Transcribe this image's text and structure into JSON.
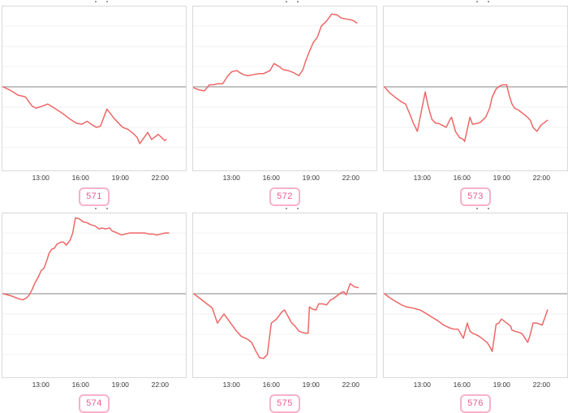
{
  "colors": {
    "line": "#ee6666",
    "zero_line": "#9e9e9e",
    "grid": "#f2f2f2",
    "panel_border": "#d9d9d9",
    "badge_border": "#f8b1ca",
    "badge_text": "#ea5c92",
    "tick_text": "#383838"
  },
  "chart_axis": {
    "t_min": 10.05,
    "t_max": 24.0,
    "ticks": [
      {
        "t": 13,
        "label": "13:00"
      },
      {
        "t": 16,
        "label": "16:00"
      },
      {
        "t": 19,
        "label": "19:00"
      },
      {
        "t": 22,
        "label": "22:00"
      }
    ],
    "grid_units": [
      3,
      2,
      1,
      0,
      -1,
      -2,
      -3
    ],
    "baseline": 0,
    "y_unit": "gridline units relative to baseline (y axis unlabeled)",
    "legend": "none",
    "grid": "horizontal only"
  },
  "chart_data": [
    {
      "badge_label": "571",
      "type": "line",
      "x_ticks": [
        "13:00",
        "16:00",
        "19:00",
        "22:00"
      ],
      "points": [
        [
          10.1,
          0
        ],
        [
          10.6,
          -0.15
        ],
        [
          11.2,
          -0.4
        ],
        [
          11.8,
          -0.5
        ],
        [
          12.3,
          -0.95
        ],
        [
          12.6,
          -1.05
        ],
        [
          13.1,
          -0.95
        ],
        [
          13.5,
          -0.85
        ],
        [
          14.0,
          -1.05
        ],
        [
          14.6,
          -1.3
        ],
        [
          15.2,
          -1.6
        ],
        [
          15.7,
          -1.8
        ],
        [
          16.1,
          -1.85
        ],
        [
          16.5,
          -1.7
        ],
        [
          16.8,
          -1.85
        ],
        [
          17.2,
          -2.0
        ],
        [
          17.5,
          -1.95
        ],
        [
          18.0,
          -1.1
        ],
        [
          18.6,
          -1.6
        ],
        [
          19.2,
          -2.0
        ],
        [
          19.6,
          -2.1
        ],
        [
          20.0,
          -2.3
        ],
        [
          20.3,
          -2.5
        ],
        [
          20.5,
          -2.8
        ],
        [
          21.1,
          -2.25
        ],
        [
          21.4,
          -2.6
        ],
        [
          21.9,
          -2.35
        ],
        [
          22.4,
          -2.65
        ],
        [
          22.5,
          -2.6
        ]
      ]
    },
    {
      "badge_label": "572",
      "type": "line",
      "x_ticks": [
        "13:00",
        "16:00",
        "19:00",
        "22:00"
      ],
      "points": [
        [
          10.1,
          -0.05
        ],
        [
          10.5,
          -0.15
        ],
        [
          10.9,
          -0.2
        ],
        [
          11.3,
          0.1
        ],
        [
          11.6,
          0.1
        ],
        [
          11.9,
          0.15
        ],
        [
          12.3,
          0.15
        ],
        [
          12.7,
          0.55
        ],
        [
          13.0,
          0.75
        ],
        [
          13.4,
          0.8
        ],
        [
          13.6,
          0.7
        ],
        [
          13.9,
          0.6
        ],
        [
          14.2,
          0.55
        ],
        [
          14.6,
          0.6
        ],
        [
          15.1,
          0.65
        ],
        [
          15.4,
          0.65
        ],
        [
          15.9,
          0.8
        ],
        [
          16.2,
          1.15
        ],
        [
          16.6,
          1.0
        ],
        [
          16.9,
          0.85
        ],
        [
          17.3,
          0.8
        ],
        [
          17.7,
          0.7
        ],
        [
          18.1,
          0.55
        ],
        [
          18.4,
          0.85
        ],
        [
          18.6,
          1.25
        ],
        [
          18.9,
          1.75
        ],
        [
          19.2,
          2.2
        ],
        [
          19.5,
          2.45
        ],
        [
          19.8,
          3.0
        ],
        [
          20.2,
          3.25
        ],
        [
          20.6,
          3.6
        ],
        [
          21.0,
          3.55
        ],
        [
          21.3,
          3.4
        ],
        [
          21.7,
          3.35
        ],
        [
          22.1,
          3.3
        ],
        [
          22.3,
          3.25
        ],
        [
          22.5,
          3.15
        ]
      ]
    },
    {
      "badge_label": "573",
      "type": "line",
      "x_ticks": [
        "13:00",
        "16:00",
        "19:00",
        "22:00"
      ],
      "points": [
        [
          10.1,
          0
        ],
        [
          10.5,
          -0.3
        ],
        [
          11.0,
          -0.55
        ],
        [
          11.4,
          -0.75
        ],
        [
          11.7,
          -0.85
        ],
        [
          12.0,
          -1.3
        ],
        [
          12.3,
          -1.8
        ],
        [
          12.6,
          -2.2
        ],
        [
          13.2,
          -0.25
        ],
        [
          13.4,
          -0.9
        ],
        [
          13.7,
          -1.6
        ],
        [
          14.0,
          -1.8
        ],
        [
          14.2,
          -1.8
        ],
        [
          14.5,
          -1.9
        ],
        [
          14.8,
          -2.0
        ],
        [
          15.1,
          -1.6
        ],
        [
          15.2,
          -1.5
        ],
        [
          15.5,
          -2.2
        ],
        [
          15.8,
          -2.5
        ],
        [
          16.1,
          -2.6
        ],
        [
          16.2,
          -2.7
        ],
        [
          16.6,
          -1.5
        ],
        [
          16.8,
          -1.85
        ],
        [
          17.2,
          -1.8
        ],
        [
          17.4,
          -1.75
        ],
        [
          17.8,
          -1.5
        ],
        [
          18.1,
          -1.05
        ],
        [
          18.3,
          -0.5
        ],
        [
          18.6,
          -0.1
        ],
        [
          18.9,
          0.05
        ],
        [
          19.1,
          0.1
        ],
        [
          19.4,
          0.1
        ],
        [
          19.6,
          -0.45
        ],
        [
          19.8,
          -0.85
        ],
        [
          20.0,
          -1.05
        ],
        [
          20.3,
          -1.15
        ],
        [
          20.6,
          -1.3
        ],
        [
          20.9,
          -1.45
        ],
        [
          21.2,
          -1.65
        ],
        [
          21.4,
          -2.0
        ],
        [
          21.7,
          -2.2
        ],
        [
          22.0,
          -1.9
        ],
        [
          22.5,
          -1.65
        ]
      ]
    },
    {
      "badge_label": "574",
      "type": "line",
      "x_ticks": [
        "13:00",
        "16:00",
        "19:00",
        "22:00"
      ],
      "points": [
        [
          10.1,
          0
        ],
        [
          10.7,
          -0.1
        ],
        [
          11.3,
          -0.25
        ],
        [
          11.6,
          -0.3
        ],
        [
          11.9,
          -0.2
        ],
        [
          12.1,
          -0.05
        ],
        [
          12.3,
          0.2
        ],
        [
          12.5,
          0.5
        ],
        [
          12.8,
          0.85
        ],
        [
          13.0,
          1.15
        ],
        [
          13.2,
          1.25
        ],
        [
          13.4,
          1.6
        ],
        [
          13.6,
          2.0
        ],
        [
          13.8,
          2.2
        ],
        [
          14.0,
          2.25
        ],
        [
          14.2,
          2.45
        ],
        [
          14.5,
          2.55
        ],
        [
          14.7,
          2.55
        ],
        [
          14.9,
          2.4
        ],
        [
          15.2,
          2.65
        ],
        [
          15.4,
          3.0
        ],
        [
          15.6,
          3.75
        ],
        [
          15.9,
          3.7
        ],
        [
          16.2,
          3.55
        ],
        [
          16.5,
          3.5
        ],
        [
          16.8,
          3.4
        ],
        [
          17.1,
          3.35
        ],
        [
          17.4,
          3.2
        ],
        [
          17.6,
          3.25
        ],
        [
          17.9,
          3.2
        ],
        [
          18.2,
          3.25
        ],
        [
          18.4,
          3.1
        ],
        [
          18.8,
          3.0
        ],
        [
          19.1,
          2.9
        ],
        [
          19.4,
          2.95
        ],
        [
          19.7,
          3.0
        ],
        [
          20.0,
          3.0
        ],
        [
          20.3,
          3.0
        ],
        [
          20.6,
          3.0
        ],
        [
          20.9,
          3.0
        ],
        [
          21.2,
          2.95
        ],
        [
          21.5,
          2.95
        ],
        [
          21.8,
          2.9
        ],
        [
          22.1,
          2.95
        ],
        [
          22.4,
          3.0
        ],
        [
          22.7,
          3.0
        ]
      ]
    },
    {
      "badge_label": "575",
      "type": "line",
      "x_ticks": [
        "13:00",
        "16:00",
        "19:00",
        "22:00"
      ],
      "points": [
        [
          10.1,
          0
        ],
        [
          10.6,
          -0.25
        ],
        [
          11.1,
          -0.5
        ],
        [
          11.5,
          -0.7
        ],
        [
          11.9,
          -1.45
        ],
        [
          12.4,
          -1.0
        ],
        [
          12.9,
          -1.45
        ],
        [
          13.3,
          -1.8
        ],
        [
          13.7,
          -2.1
        ],
        [
          14.2,
          -2.25
        ],
        [
          14.5,
          -2.4
        ],
        [
          14.8,
          -2.8
        ],
        [
          15.1,
          -3.15
        ],
        [
          15.4,
          -3.2
        ],
        [
          15.7,
          -3.0
        ],
        [
          16.0,
          -1.45
        ],
        [
          16.4,
          -1.25
        ],
        [
          16.8,
          -0.9
        ],
        [
          17.0,
          -0.8
        ],
        [
          17.3,
          -1.15
        ],
        [
          17.5,
          -1.4
        ],
        [
          17.8,
          -1.6
        ],
        [
          18.1,
          -1.85
        ],
        [
          18.3,
          -1.9
        ],
        [
          18.6,
          -1.95
        ],
        [
          18.8,
          -1.95
        ],
        [
          18.9,
          -0.65
        ],
        [
          19.1,
          -0.75
        ],
        [
          19.4,
          -0.8
        ],
        [
          19.6,
          -0.5
        ],
        [
          19.9,
          -0.5
        ],
        [
          20.2,
          -0.55
        ],
        [
          20.5,
          -0.3
        ],
        [
          20.7,
          -0.25
        ],
        [
          21.0,
          -0.1
        ],
        [
          21.3,
          0.05
        ],
        [
          21.5,
          0.1
        ],
        [
          21.7,
          -0.05
        ],
        [
          22.0,
          0.5
        ],
        [
          22.3,
          0.35
        ],
        [
          22.6,
          0.3
        ]
      ]
    },
    {
      "badge_label": "576",
      "type": "line",
      "x_ticks": [
        "13:00",
        "16:00",
        "19:00",
        "22:00"
      ],
      "points": [
        [
          10.1,
          0
        ],
        [
          10.5,
          -0.2
        ],
        [
          11.0,
          -0.4
        ],
        [
          11.4,
          -0.55
        ],
        [
          11.8,
          -0.65
        ],
        [
          12.2,
          -0.7
        ],
        [
          12.8,
          -0.8
        ],
        [
          13.2,
          -0.95
        ],
        [
          13.7,
          -1.15
        ],
        [
          14.2,
          -1.35
        ],
        [
          14.6,
          -1.55
        ],
        [
          15.1,
          -1.7
        ],
        [
          15.4,
          -1.75
        ],
        [
          15.7,
          -1.75
        ],
        [
          16.1,
          -2.2
        ],
        [
          16.4,
          -1.45
        ],
        [
          16.6,
          -1.85
        ],
        [
          16.8,
          -1.95
        ],
        [
          17.0,
          -2.0
        ],
        [
          17.3,
          -2.1
        ],
        [
          17.6,
          -2.25
        ],
        [
          17.9,
          -2.4
        ],
        [
          18.1,
          -2.6
        ],
        [
          18.3,
          -2.85
        ],
        [
          18.6,
          -1.5
        ],
        [
          18.8,
          -1.45
        ],
        [
          19.0,
          -1.25
        ],
        [
          19.4,
          -1.45
        ],
        [
          19.7,
          -1.6
        ],
        [
          19.8,
          -1.8
        ],
        [
          20.0,
          -1.85
        ],
        [
          20.3,
          -1.9
        ],
        [
          20.5,
          -1.95
        ],
        [
          20.6,
          -2.0
        ],
        [
          20.9,
          -2.3
        ],
        [
          21.0,
          -2.4
        ],
        [
          21.2,
          -2.0
        ],
        [
          21.4,
          -1.45
        ],
        [
          21.7,
          -1.45
        ],
        [
          21.9,
          -1.5
        ],
        [
          22.1,
          -1.55
        ],
        [
          22.4,
          -1.0
        ],
        [
          22.5,
          -0.8
        ]
      ]
    }
  ]
}
